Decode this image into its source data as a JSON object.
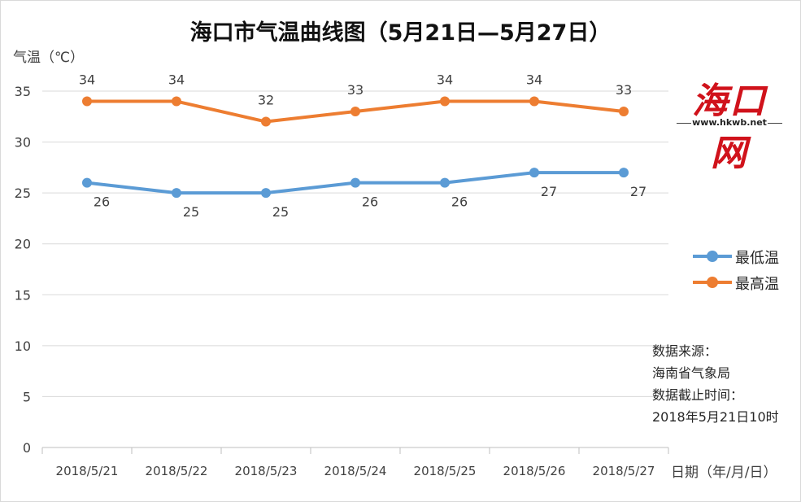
{
  "title": "海口市气温曲线图（5月21日—5月27日）",
  "logo": {
    "main": "海口网",
    "url_text": "www.hkwb.net"
  },
  "source": {
    "line1": "数据来源：",
    "line2": "海南省气象局",
    "line3": "数据截止时间：",
    "line4": "2018年5月21日10时"
  },
  "colors": {
    "low": "#5b9bd5",
    "high": "#ed7d31",
    "grid": "#d9d9d9",
    "text": "#404040"
  },
  "chart_data": {
    "type": "line",
    "title": "海口市气温曲线图（5月21日—5月27日）",
    "ylabel": "气温（℃）",
    "xlabel": "日期（年/月/日）",
    "categories": [
      "2018/5/21",
      "2018/5/22",
      "2018/5/23",
      "2018/5/24",
      "2018/5/25",
      "2018/5/26",
      "2018/5/27"
    ],
    "ylim": [
      0,
      35
    ],
    "yticks": [
      0,
      5,
      10,
      15,
      20,
      25,
      30,
      35
    ],
    "grid": true,
    "legend_position": "right",
    "series": [
      {
        "name": "最低温",
        "values": [
          26,
          25,
          25,
          26,
          26,
          27,
          27
        ],
        "color": "#5b9bd5",
        "label_position": "below"
      },
      {
        "name": "最高温",
        "values": [
          34,
          34,
          32,
          33,
          34,
          34,
          33
        ],
        "color": "#ed7d31",
        "label_position": "above"
      }
    ]
  }
}
